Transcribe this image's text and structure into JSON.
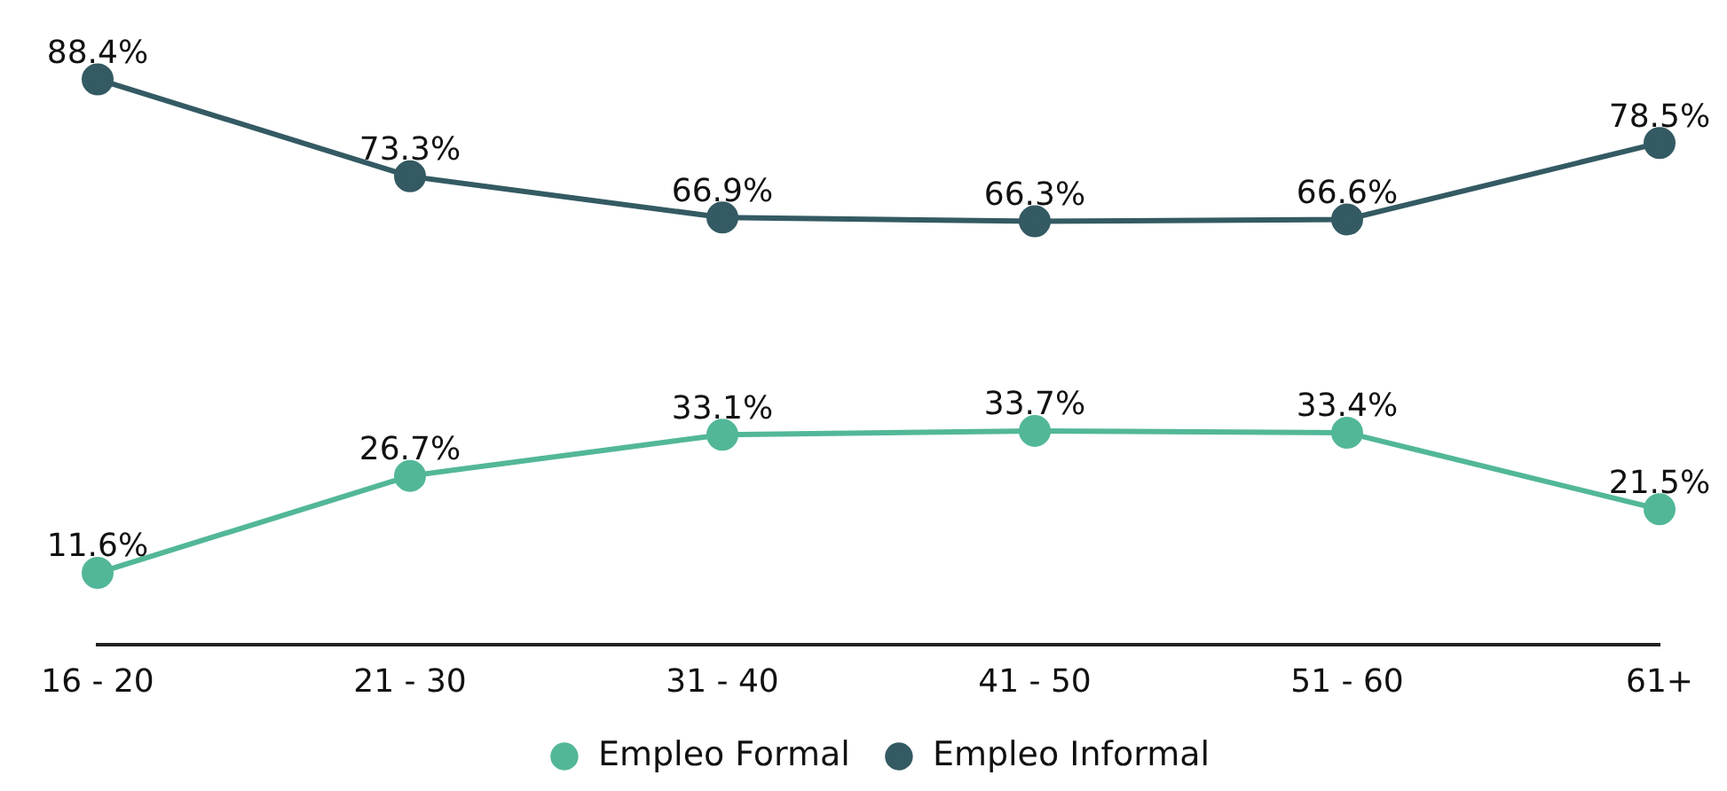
{
  "chart_data": {
    "type": "line",
    "categories": [
      "16 - 20",
      "21 - 30",
      "31 - 40",
      "41 - 50",
      "51 - 60",
      "61+"
    ],
    "series": [
      {
        "name": "Empleo Formal",
        "color": "#52b798",
        "values": [
          11.6,
          26.7,
          33.1,
          33.7,
          33.4,
          21.5
        ],
        "value_labels": [
          "11.6%",
          "26.7%",
          "33.1%",
          "33.7%",
          "33.4%",
          "21.5%"
        ]
      },
      {
        "name": "Empleo Informal",
        "color": "#345a63",
        "values": [
          88.4,
          73.3,
          66.9,
          66.3,
          66.6,
          78.5
        ],
        "value_labels": [
          "88.4%",
          "73.3%",
          "66.9%",
          "66.3%",
          "66.6%",
          "78.5%"
        ]
      }
    ],
    "legend": "bottom",
    "marker": "circle",
    "line_style": "solid",
    "tick_labels": "x"
  }
}
